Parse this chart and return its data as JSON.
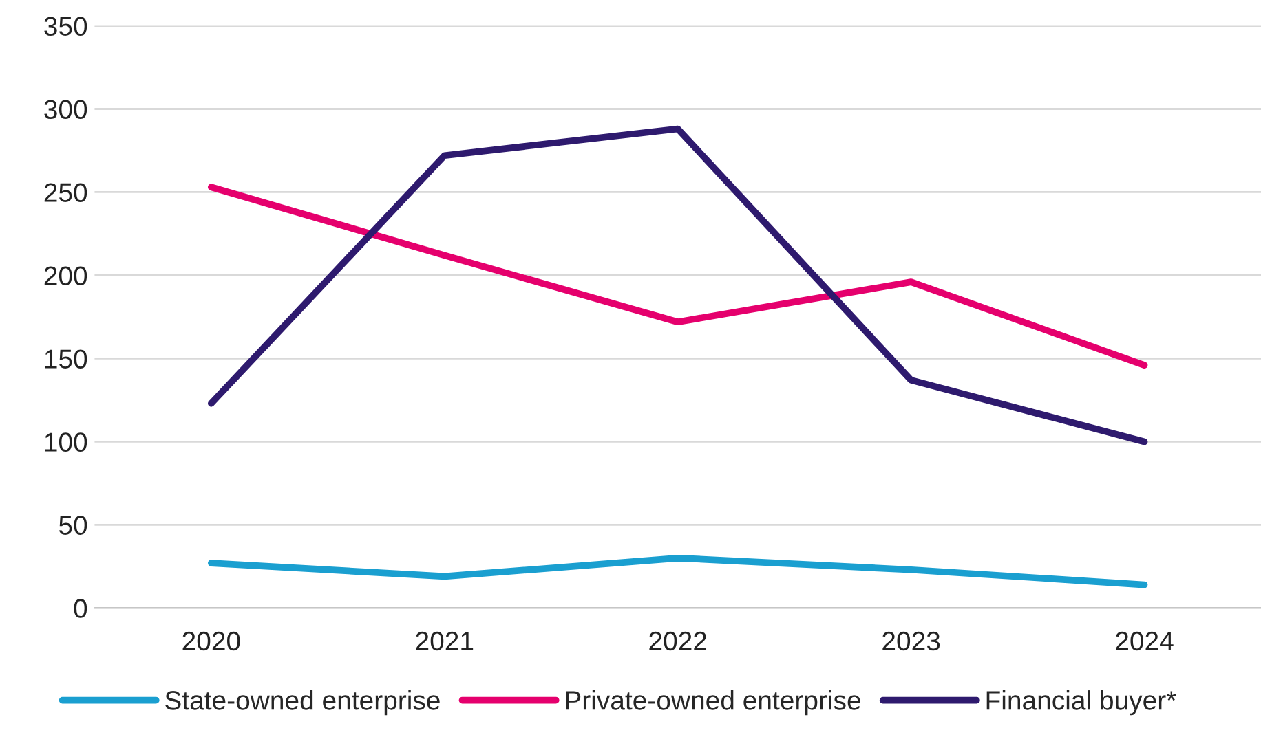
{
  "chart_data": {
    "type": "line",
    "categories": [
      "2020",
      "2021",
      "2022",
      "2023",
      "2024"
    ],
    "series": [
      {
        "name": "State-owned enterprise",
        "color": "#1a9fd0",
        "values": [
          27,
          19,
          30,
          23,
          14
        ]
      },
      {
        "name": "Private-owned enterprise",
        "color": "#e5006d",
        "values": [
          253,
          212,
          172,
          196,
          146
        ]
      },
      {
        "name": "Financial buyer*",
        "color": "#2e1a6e",
        "values": [
          123,
          272,
          288,
          137,
          100
        ]
      }
    ],
    "ylim": [
      0,
      350
    ],
    "yticks": [
      0,
      50,
      100,
      150,
      200,
      250,
      300,
      350
    ],
    "grid": "y",
    "legend": "bottom",
    "marker": "none",
    "line_style": "solid"
  }
}
